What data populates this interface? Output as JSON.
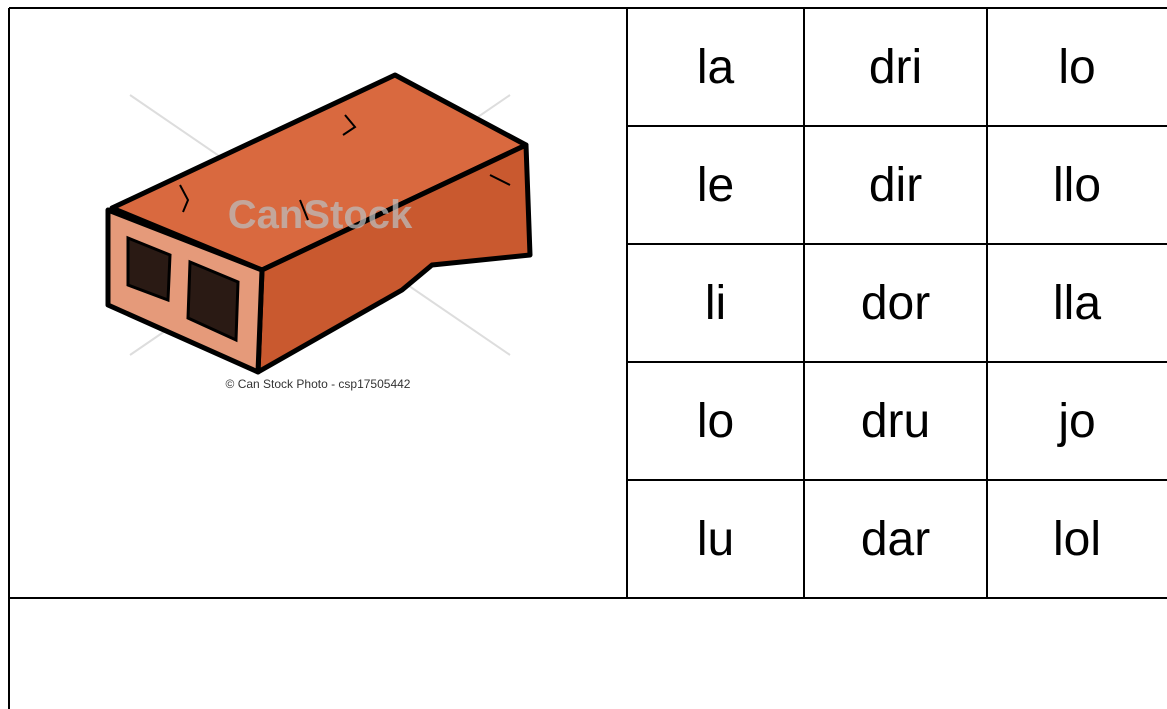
{
  "image": {
    "watermark": "CanStock",
    "caption": "© Can Stock Photo - csp17505442"
  },
  "grid": {
    "rows": [
      [
        "la",
        "dri",
        "lo"
      ],
      [
        "le",
        "dir",
        "llo"
      ],
      [
        "li",
        "dor",
        "lla"
      ],
      [
        "lo",
        "dru",
        "jo"
      ],
      [
        "lu",
        "dar",
        "lol"
      ]
    ]
  }
}
